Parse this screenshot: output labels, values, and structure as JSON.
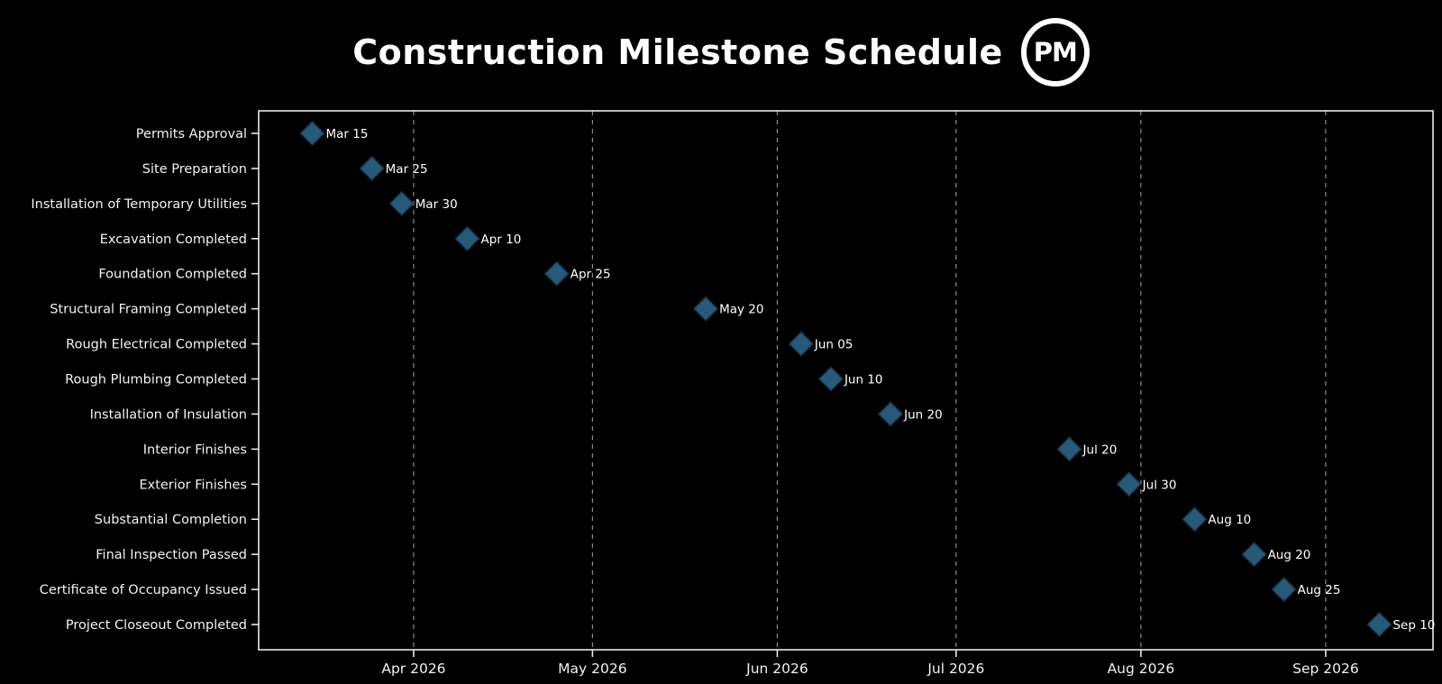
{
  "header": {
    "title": "Construction Milestone Schedule",
    "logo_text": "PM"
  },
  "chart_data": {
    "type": "scatter",
    "subtype": "milestone-timeline",
    "title": "Construction Milestone Schedule",
    "categories": [
      "Permits Approval",
      "Site Preparation",
      "Installation of Temporary Utilities",
      "Excavation Completed",
      "Foundation Completed",
      "Structural Framing Completed",
      "Rough Electrical Completed",
      "Rough Plumbing Completed",
      "Installation of Insulation",
      "Interior Finishes",
      "Exterior Finishes",
      "Substantial Completion",
      "Final Inspection Passed",
      "Certificate of Occupancy Issued",
      "Project Closeout Completed"
    ],
    "milestones": [
      {
        "task": "Permits Approval",
        "date": "2026-03-15",
        "label": "Mar 15"
      },
      {
        "task": "Site Preparation",
        "date": "2026-03-25",
        "label": "Mar 25"
      },
      {
        "task": "Installation of Temporary Utilities",
        "date": "2026-03-30",
        "label": "Mar 30"
      },
      {
        "task": "Excavation Completed",
        "date": "2026-04-10",
        "label": "Apr 10"
      },
      {
        "task": "Foundation Completed",
        "date": "2026-04-25",
        "label": "Apr 25"
      },
      {
        "task": "Structural Framing Completed",
        "date": "2026-05-20",
        "label": "May 20"
      },
      {
        "task": "Rough Electrical Completed",
        "date": "2026-06-05",
        "label": "Jun 05"
      },
      {
        "task": "Rough Plumbing Completed",
        "date": "2026-06-10",
        "label": "Jun 10"
      },
      {
        "task": "Installation of Insulation",
        "date": "2026-06-20",
        "label": "Jun 20"
      },
      {
        "task": "Interior Finishes",
        "date": "2026-07-20",
        "label": "Jul 20"
      },
      {
        "task": "Exterior Finishes",
        "date": "2026-07-30",
        "label": "Jul 30"
      },
      {
        "task": "Substantial Completion",
        "date": "2026-08-10",
        "label": "Aug 10"
      },
      {
        "task": "Final Inspection Passed",
        "date": "2026-08-20",
        "label": "Aug 20"
      },
      {
        "task": "Certificate of Occupancy Issued",
        "date": "2026-08-25",
        "label": "Aug 25"
      },
      {
        "task": "Project Closeout Completed",
        "date": "2026-09-10",
        "label": "Sep 10"
      }
    ],
    "x_axis": {
      "range": [
        "2026-03-06",
        "2026-09-19"
      ],
      "ticks": [
        "2026-04-01",
        "2026-05-01",
        "2026-06-01",
        "2026-07-01",
        "2026-08-01",
        "2026-09-01"
      ],
      "tick_labels": [
        "Apr 2026",
        "May 2026",
        "Jun 2026",
        "Jul 2026",
        "Aug 2026",
        "Sep 2026"
      ]
    },
    "marker": {
      "shape": "diamond",
      "fill": "#275a78",
      "edge": "#16374d",
      "half_size": 13
    },
    "grid": {
      "show": true,
      "orientation": "vertical",
      "color": "#8c8c8c",
      "style": "dashed"
    },
    "colors": {
      "background": "#000000",
      "axis": "#e8e8e8",
      "tick_label": "#f2f2f2",
      "category_label": "#f2f2f2",
      "date_label": "#ffffff",
      "title": "#ffffff"
    },
    "legend": {
      "show": false
    }
  }
}
